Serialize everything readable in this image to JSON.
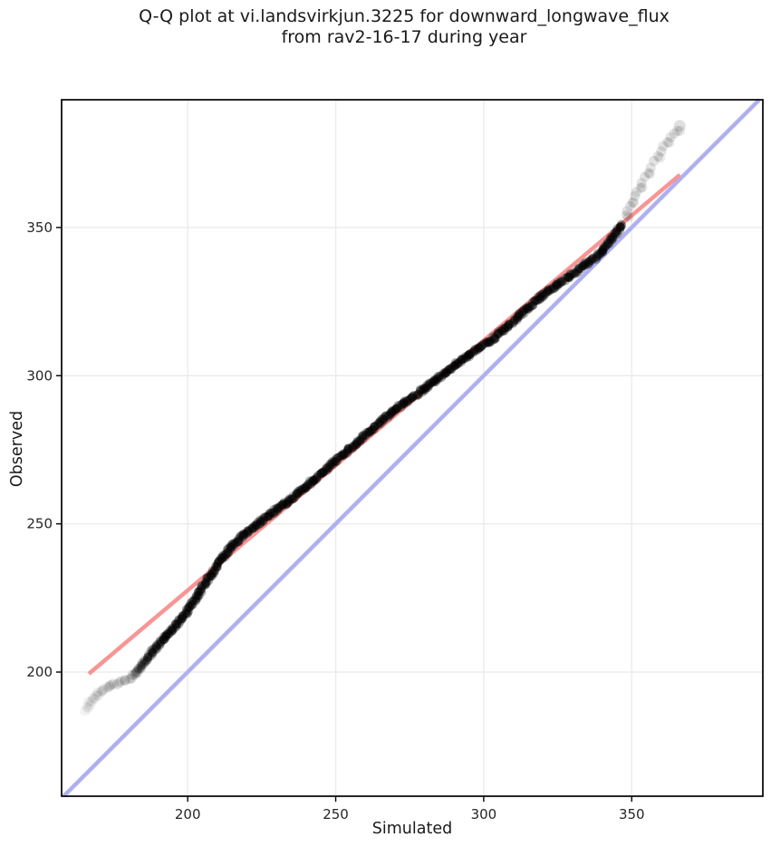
{
  "title": {
    "line1": "Q-Q plot at vi.landsvirkjun.3225 for downward_longwave_flux",
    "line2": "from rav2-16-17 during year"
  },
  "chart_data": {
    "type": "scatter",
    "variant": "qq-plot",
    "title": "Q-Q plot at vi.landsvirkjun.3225 for downward_longwave_flux from rav2-16-17 during year",
    "xlabel": "Simulated",
    "ylabel": "Observed",
    "xlim": [
      157.4,
      394.3
    ],
    "ylim": [
      158.1,
      393.1
    ],
    "xticks": [
      200,
      250,
      300,
      350
    ],
    "yticks": [
      200,
      250,
      300,
      350
    ],
    "grid": true,
    "legend": false,
    "identity_line": {
      "name": "identity y = x",
      "x": [
        158.1,
        393.1
      ],
      "y": [
        158.1,
        393.1
      ],
      "color": "#b0b0f0",
      "width": 4.5
    },
    "fit_line": {
      "name": "linear fit",
      "x": [
        166.6,
        366.3
      ],
      "y": [
        199.4,
        367.8
      ],
      "color": "#f89595",
      "width": 4.5
    },
    "points_color": "#000000",
    "marker_radius_px": 5,
    "lower_tail": [
      [
        165.5,
        187.3,
        0.05
      ],
      [
        166.2,
        188.5,
        0.05
      ],
      [
        167.0,
        189.7,
        0.06
      ],
      [
        167.9,
        190.9,
        0.06
      ],
      [
        168.9,
        192.0,
        0.07
      ],
      [
        170.0,
        193.0,
        0.07
      ],
      [
        171.2,
        193.9,
        0.08
      ],
      [
        172.5,
        194.6,
        0.08
      ],
      [
        173.9,
        195.2,
        0.09
      ],
      [
        175.4,
        195.8,
        0.09
      ],
      [
        177.0,
        196.4,
        0.1
      ],
      [
        178.6,
        197.1,
        0.11
      ],
      [
        180.1,
        197.9,
        0.12
      ],
      [
        181.5,
        198.8,
        0.14
      ],
      [
        182.4,
        199.7,
        0.16
      ]
    ],
    "dense_curve": [
      [
        183,
        200.5
      ],
      [
        185,
        203
      ],
      [
        187,
        205.5
      ],
      [
        189,
        208
      ],
      [
        191,
        210.5
      ],
      [
        193,
        212.5
      ],
      [
        195,
        214.5
      ],
      [
        197,
        217
      ],
      [
        199,
        219.5
      ],
      [
        201,
        222.5
      ],
      [
        203,
        225.5
      ],
      [
        205,
        228.5
      ],
      [
        207,
        231.5
      ],
      [
        209,
        234.5
      ],
      [
        211,
        237.5
      ],
      [
        213,
        240
      ],
      [
        215,
        242.5
      ],
      [
        217,
        244.5
      ],
      [
        219,
        246.5
      ],
      [
        221,
        248
      ],
      [
        223,
        249.5
      ],
      [
        225,
        251
      ],
      [
        227,
        252.5
      ],
      [
        229,
        254
      ],
      [
        231,
        255.5
      ],
      [
        233,
        257
      ],
      [
        235,
        258.5
      ],
      [
        237,
        260.2
      ],
      [
        239,
        261.8
      ],
      [
        241,
        263.5
      ],
      [
        243,
        265
      ],
      [
        245,
        266.8
      ],
      [
        247,
        268.6
      ],
      [
        249,
        270.5
      ],
      [
        251,
        272
      ],
      [
        253,
        273.8
      ],
      [
        255,
        275.5
      ],
      [
        257,
        277.2
      ],
      [
        259,
        279
      ],
      [
        261,
        280.8
      ],
      [
        263,
        282.6
      ],
      [
        265,
        284.4
      ],
      [
        267,
        286.2
      ],
      [
        269,
        287.8
      ],
      [
        271,
        289.3
      ],
      [
        273,
        290.8
      ],
      [
        275,
        292.2
      ],
      [
        277,
        293.6
      ],
      [
        279,
        295
      ],
      [
        281,
        296.5
      ],
      [
        283,
        298
      ],
      [
        285,
        299.5
      ],
      [
        287,
        301
      ],
      [
        289,
        302.5
      ],
      [
        291,
        304
      ],
      [
        293,
        305.5
      ],
      [
        295,
        307
      ],
      [
        297,
        308.3
      ],
      [
        299,
        309.6
      ],
      [
        301,
        311
      ],
      [
        303,
        312.2
      ],
      [
        305,
        314
      ],
      [
        307,
        315.7
      ],
      [
        309,
        317.5
      ],
      [
        311,
        319.3
      ],
      [
        313,
        321.1
      ],
      [
        315,
        322.9
      ],
      [
        317,
        324.7
      ],
      [
        319,
        326.4
      ],
      [
        321,
        327.9
      ],
      [
        323,
        329.4
      ],
      [
        325,
        330.8
      ],
      [
        327,
        332.2
      ],
      [
        329,
        333.6
      ],
      [
        331,
        335
      ],
      [
        333,
        336.5
      ],
      [
        335,
        338
      ],
      [
        337,
        339.4
      ],
      [
        339,
        340.8
      ],
      [
        341,
        343.3
      ],
      [
        343,
        346
      ],
      [
        345,
        348.6
      ],
      [
        347,
        351.2
      ]
    ],
    "dense_alpha_ramp": [
      [
        183,
        0.16
      ],
      [
        191,
        0.3
      ]
    ],
    "upper_tail": [
      [
        348.0,
        353.8,
        0.12
      ],
      [
        348.7,
        355.5,
        0.11
      ],
      [
        349.4,
        357.0,
        0.11
      ],
      [
        350.2,
        358.6,
        0.11
      ],
      [
        351.0,
        360.3,
        0.11
      ],
      [
        351.8,
        362.0,
        0.11
      ],
      [
        352.7,
        363.6,
        0.11
      ],
      [
        353.6,
        365.2,
        0.11
      ],
      [
        354.6,
        366.9,
        0.11
      ],
      [
        355.6,
        368.7,
        0.11
      ],
      [
        356.6,
        370.4,
        0.11
      ],
      [
        357.7,
        372.1,
        0.11
      ],
      [
        358.8,
        373.9,
        0.11
      ],
      [
        359.9,
        375.7,
        0.11
      ],
      [
        361.0,
        377.4,
        0.11
      ],
      [
        362.1,
        379.1,
        0.11
      ],
      [
        363.2,
        380.7,
        0.1
      ],
      [
        364.3,
        381.9,
        0.1
      ],
      [
        365.3,
        382.7,
        0.1
      ],
      [
        366.1,
        384.2,
        0.12
      ]
    ]
  },
  "colors": {
    "background": "#ffffff",
    "grid": "#ebebeb",
    "axis": "#000000",
    "tick_label": "#262626",
    "title": "#1a1a1a"
  }
}
